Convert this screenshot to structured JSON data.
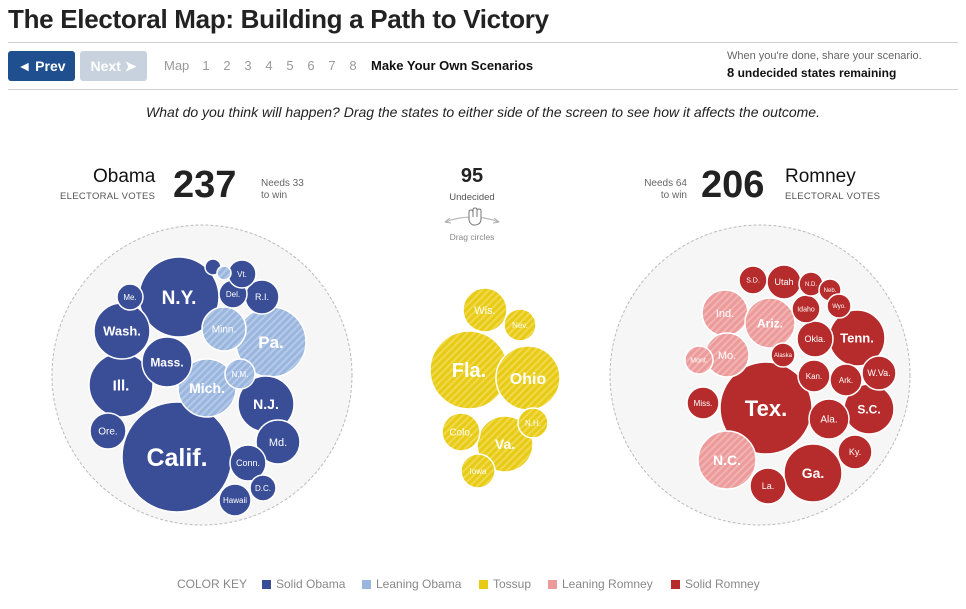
{
  "header": {
    "title": "The Electoral Map: Building a Path to Victory"
  },
  "nav": {
    "prev_label": "◄ Prev",
    "next_label": "Next ➤",
    "map_label": "Map",
    "pages": [
      "1",
      "2",
      "3",
      "4",
      "5",
      "6",
      "7",
      "8"
    ],
    "scenarios_label": "Make Your Own Scenarios",
    "share_text": "When you're done, share your scenario.",
    "remaining_count": "8",
    "remaining_text": "undecided states remaining"
  },
  "instruction": "What do you think will happen? Drag the states to either side of the screen to see how it affects the outcome.",
  "obama": {
    "name": "Obama",
    "ev_label": "ELECTORAL VOTES",
    "votes": "237",
    "needs_1": "Needs 33",
    "needs_2": "to win"
  },
  "romney": {
    "name": "Romney",
    "ev_label": "ELECTORAL VOTES",
    "votes": "206",
    "needs_1": "Needs 64",
    "needs_2": "to win"
  },
  "undecided": {
    "votes": "95",
    "label": "Undecided",
    "drag_label": "Drag circles",
    "hand_icon": "hand-icon"
  },
  "colors": {
    "solid_obama": "#3a4d97",
    "leaning_obama": "#9bb6de",
    "tossup": "#e8cb17",
    "leaning_romney": "#ec9a9a",
    "solid_romney": "#b62b2b"
  },
  "states": {
    "obama": [
      {
        "name": "Calif.",
        "cat": "solid_obama"
      },
      {
        "name": "N.Y.",
        "cat": "solid_obama"
      },
      {
        "name": "Ill.",
        "cat": "solid_obama"
      },
      {
        "name": "Pa.",
        "cat": "leaning_obama"
      },
      {
        "name": "Mich.",
        "cat": "leaning_obama"
      },
      {
        "name": "N.J.",
        "cat": "solid_obama"
      },
      {
        "name": "Wash.",
        "cat": "solid_obama"
      },
      {
        "name": "Mass.",
        "cat": "solid_obama"
      },
      {
        "name": "Minn.",
        "cat": "leaning_obama"
      },
      {
        "name": "Md.",
        "cat": "solid_obama"
      },
      {
        "name": "Ore.",
        "cat": "solid_obama"
      },
      {
        "name": "Conn.",
        "cat": "solid_obama"
      },
      {
        "name": "N.M.",
        "cat": "leaning_obama"
      },
      {
        "name": "R.I.",
        "cat": "solid_obama"
      },
      {
        "name": "Del.",
        "cat": "solid_obama"
      },
      {
        "name": "D.C.",
        "cat": "solid_obama"
      },
      {
        "name": "Hawaii",
        "cat": "solid_obama"
      },
      {
        "name": "Me.",
        "cat": "solid_obama"
      },
      {
        "name": "Vt.",
        "cat": "solid_obama"
      },
      {
        "name": "",
        "cat": "solid_obama"
      },
      {
        "name": "",
        "cat": "leaning_obama"
      }
    ],
    "tossup": [
      {
        "name": "Fla.",
        "cat": "tossup"
      },
      {
        "name": "Ohio",
        "cat": "tossup"
      },
      {
        "name": "Va.",
        "cat": "tossup"
      },
      {
        "name": "Wis.",
        "cat": "tossup"
      },
      {
        "name": "Colo.",
        "cat": "tossup"
      },
      {
        "name": "Iowa",
        "cat": "tossup"
      },
      {
        "name": "Nev.",
        "cat": "tossup"
      },
      {
        "name": "N.H.",
        "cat": "tossup"
      }
    ],
    "romney": [
      {
        "name": "Tex.",
        "cat": "solid_romney"
      },
      {
        "name": "Ga.",
        "cat": "solid_romney"
      },
      {
        "name": "N.C.",
        "cat": "leaning_romney"
      },
      {
        "name": "Tenn.",
        "cat": "solid_romney"
      },
      {
        "name": "Ind.",
        "cat": "leaning_romney"
      },
      {
        "name": "Ariz.",
        "cat": "leaning_romney"
      },
      {
        "name": "Mo.",
        "cat": "leaning_romney"
      },
      {
        "name": "S.C.",
        "cat": "solid_romney"
      },
      {
        "name": "Ala.",
        "cat": "solid_romney"
      },
      {
        "name": "La.",
        "cat": "solid_romney"
      },
      {
        "name": "Okla.",
        "cat": "solid_romney"
      },
      {
        "name": "Ky.",
        "cat": "solid_romney"
      },
      {
        "name": "Ark.",
        "cat": "solid_romney"
      },
      {
        "name": "Kan.",
        "cat": "solid_romney"
      },
      {
        "name": "Miss.",
        "cat": "solid_romney"
      },
      {
        "name": "Utah",
        "cat": "solid_romney"
      },
      {
        "name": "W.Va.",
        "cat": "solid_romney"
      },
      {
        "name": "Idaho",
        "cat": "solid_romney"
      },
      {
        "name": "Mont.",
        "cat": "leaning_romney"
      },
      {
        "name": "S.D.",
        "cat": "solid_romney"
      },
      {
        "name": "N.D.",
        "cat": "solid_romney"
      },
      {
        "name": "Neb.",
        "cat": "solid_romney"
      },
      {
        "name": "Wyo.",
        "cat": "solid_romney"
      },
      {
        "name": "Alaska",
        "cat": "solid_romney"
      }
    ]
  },
  "color_key": {
    "title": "COLOR KEY",
    "items": [
      {
        "label": "Solid Obama",
        "color": "#3a4d97"
      },
      {
        "label": "Leaning Obama",
        "color": "#9bb6de"
      },
      {
        "label": "Tossup",
        "color": "#e8cb17"
      },
      {
        "label": "Leaning Romney",
        "color": "#ec9a9a"
      },
      {
        "label": "Solid Romney",
        "color": "#b62b2b"
      }
    ]
  }
}
